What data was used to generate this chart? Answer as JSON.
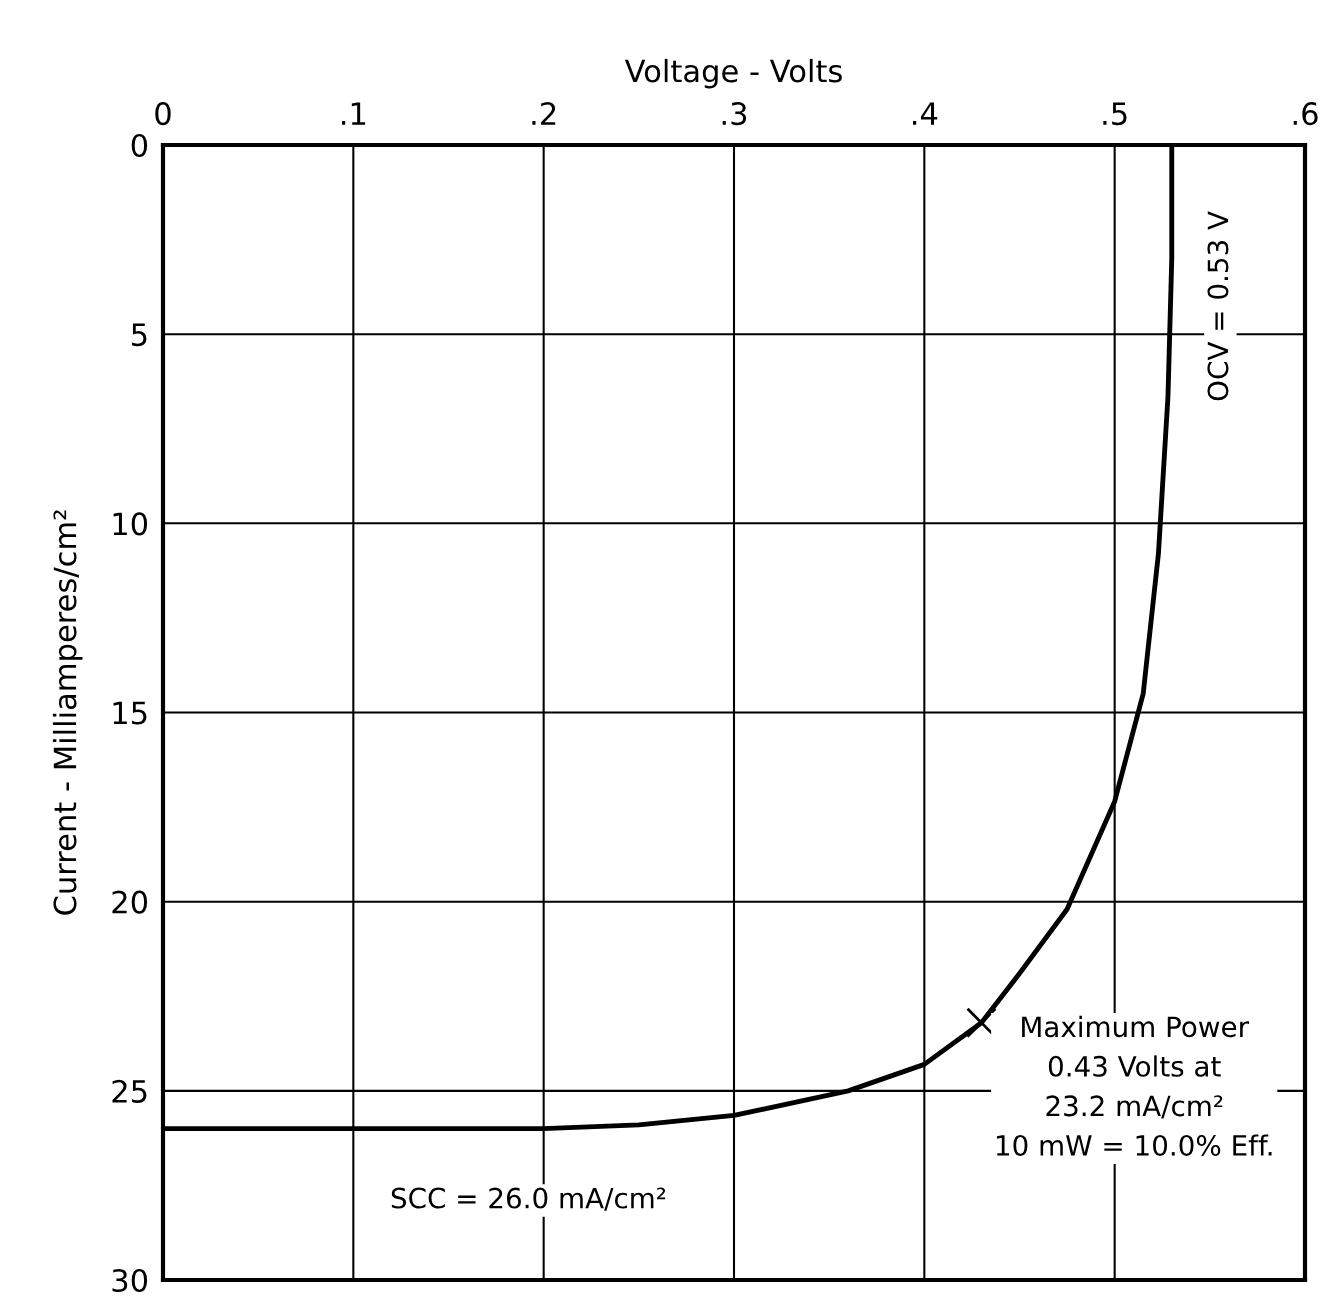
{
  "chart_data": {
    "type": "line",
    "xlabel": "Voltage - Volts",
    "ylabel": "Current - Milliamperes/cm²",
    "xlim": [
      0,
      0.6
    ],
    "ylim": [
      30,
      0
    ],
    "xticks": [
      0,
      {
        "value": 0.1,
        "label": ".1"
      },
      {
        "value": 0.2,
        "label": ".2"
      },
      {
        "value": 0.3,
        "label": ".3"
      },
      {
        "value": 0.4,
        "label": ".4"
      },
      {
        "value": 0.5,
        "label": ".5"
      },
      {
        "value": 0.6,
        "label": ".6"
      }
    ],
    "yticks": [
      0,
      5,
      10,
      15,
      20,
      25,
      30
    ],
    "grid": true,
    "series": [
      {
        "color": "#000000",
        "line_style": "solid",
        "marker": "none",
        "x": [
          0,
          0.1,
          0.2,
          0.25,
          0.3,
          0.36,
          0.4,
          0.43,
          0.45,
          0.475,
          0.5,
          0.515,
          0.523,
          0.528,
          0.53,
          0.53
        ],
        "values": [
          26.0,
          26.0,
          26.0,
          25.9,
          25.65,
          25.0,
          24.3,
          23.2,
          21.9,
          20.2,
          17.35,
          14.5,
          10.8,
          6.65,
          3,
          0
        ]
      },
      {
        "type": "scatter",
        "color": "#000000",
        "marker": "cross",
        "x": [
          0.43
        ],
        "values": [
          23.2
        ]
      }
    ],
    "annotations": [
      {
        "text": "OCV = 0.53 V",
        "x": 0.53,
        "y": 5
      },
      "SCC = 26.0 mA/cm²",
      {
        "text": "Maximum Power\n0.43 Volts at\n23.2 mA/cm²\n10 mW = 10.0% Eff.",
        "x": 0.43,
        "y": 23.2
      }
    ]
  }
}
